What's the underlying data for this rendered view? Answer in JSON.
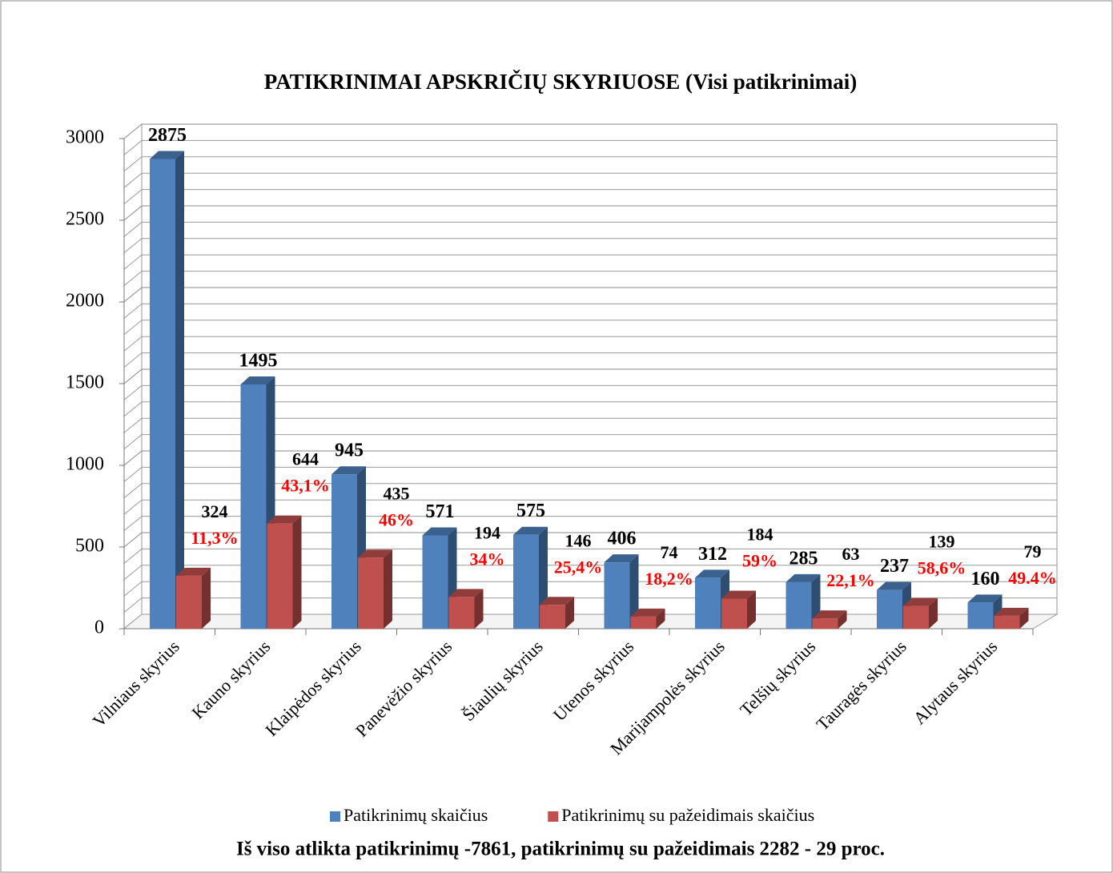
{
  "chart_data": {
    "type": "bar3d",
    "title": "PATIKRINIMAI APSKRIČIŲ SKYRIUOSE (Visi patikrinimai)",
    "categories": [
      "Vilniaus skyrius",
      "Kauno skyrius",
      "Klaipėdos skyrius",
      "Panevėžio skyrius",
      "Šiaulių skyrius",
      "Utenos skyrius",
      "Marijampolės skyrius",
      "Telšių  skyrius",
      "Tauragės skyrius",
      "Alytaus skyrius"
    ],
    "series": [
      {
        "name": "Patikrinimų skaičius",
        "color": "#4f81bd",
        "values": [
          2875,
          1495,
          945,
          571,
          575,
          406,
          312,
          285,
          237,
          160
        ]
      },
      {
        "name": "Patikrinimų su pažeidimais skaičius",
        "color": "#c0504d",
        "values": [
          324,
          644,
          435,
          194,
          146,
          74,
          184,
          63,
          139,
          79
        ],
        "percent_labels": [
          "11,3%",
          "43,1%",
          "46%",
          "34%",
          "25,4%",
          "18,2%",
          "59%",
          "22,1%",
          "58,6%",
          "49.4%"
        ]
      }
    ],
    "ylim": [
      0,
      3000
    ],
    "yticks": [
      0,
      500,
      1000,
      1500,
      2000,
      2500,
      3000
    ],
    "minor_yticks": [
      100,
      200,
      300,
      400,
      600,
      700,
      800,
      900,
      1100,
      1200,
      1300,
      1400,
      1600,
      1700,
      1800,
      1900,
      2100,
      2200,
      2300,
      2400,
      2600,
      2700,
      2800,
      2900
    ],
    "grid": true,
    "legend": "bottom",
    "note": "Iš viso atlikta patikrinimų -7861, patikrinimų su pažeidimais 2282 - 29 proc."
  }
}
